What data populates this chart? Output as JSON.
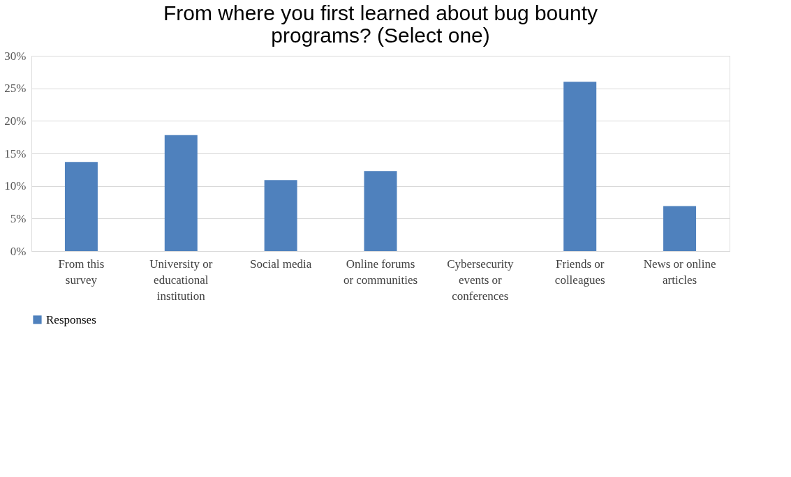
{
  "chart_data": {
    "type": "bar",
    "title": "From where you first learned about bug bounty programs? (Select one)",
    "categories": [
      "From this survey",
      "University or educational institution",
      "Social media",
      "Online forums or communities",
      "Cybersecurity events or conferences",
      "Friends or colleagues",
      "News or online articles"
    ],
    "series": [
      {
        "name": "Responses",
        "color": "#4f81bd",
        "values": [
          13.7,
          17.8,
          10.9,
          12.3,
          0,
          26.0,
          6.9
        ]
      }
    ],
    "ylim": [
      0,
      30
    ],
    "yticks": [
      {
        "value": 0,
        "label": "0%"
      },
      {
        "value": 5,
        "label": "5%"
      },
      {
        "value": 10,
        "label": "10%"
      },
      {
        "value": 15,
        "label": "15%"
      },
      {
        "value": 20,
        "label": "20%"
      },
      {
        "value": 25,
        "label": "25%"
      },
      {
        "value": 30,
        "label": "30%"
      }
    ],
    "grid": "y",
    "legend": "bottom"
  }
}
